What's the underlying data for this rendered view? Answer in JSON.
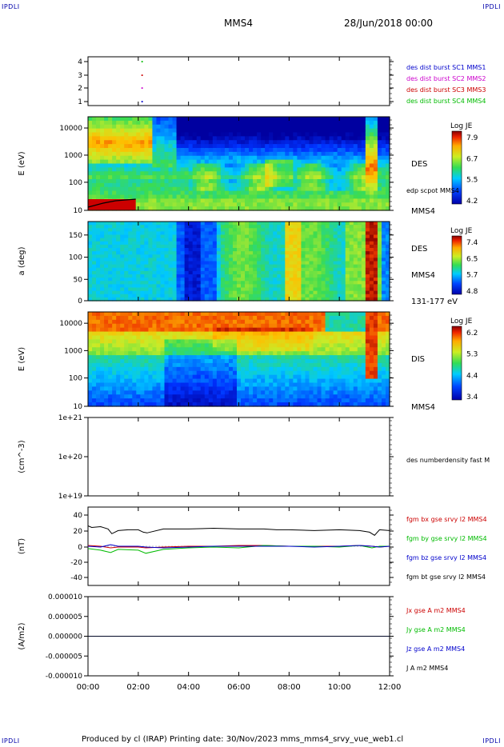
{
  "header": {
    "corner_tl": "IPDLI",
    "corner_tr": "IPDLI",
    "corner_bl": "IPDLI",
    "corner_br": "IPDLI",
    "mission": "MMS4",
    "date": "28/Jun/2018 00:00"
  },
  "footer": {
    "text": "Produced by cl (IRAP)   Printing date: 30/Nov/2023   mms_mms4_srvy_vue_web1.cl"
  },
  "colors": {
    "mms1": "#0000cc",
    "mms2": "#cc00cc",
    "mms3": "#cc0000",
    "mms4": "#00bb00",
    "bx": "#cc0000",
    "by": "#00bb00",
    "bz": "#0000cc",
    "bt": "#000000"
  },
  "chart_data": [
    {
      "id": "burst",
      "type": "scatter",
      "ylabel": "",
      "yticks": [
        "4",
        "3",
        "2",
        "1"
      ],
      "ylim": [
        0.5,
        4.5
      ],
      "series": [
        {
          "name": "des dist burst SC1 MMS1",
          "x": [
            2.15
          ],
          "y": [
            1
          ]
        },
        {
          "name": "des dist burst SC2 MMS2",
          "x": [
            2.15
          ],
          "y": [
            2
          ]
        },
        {
          "name": "des dist burst SC3 MMS3",
          "x": [
            2.15
          ],
          "y": [
            3
          ]
        },
        {
          "name": "des dist burst SC4 MMS4",
          "x": [
            2.15
          ],
          "y": [
            4
          ]
        }
      ]
    },
    {
      "id": "des_energy",
      "type": "heatmap",
      "ylabel": "E (eV)",
      "yticks": [
        "10000",
        "1000",
        "100",
        "10"
      ],
      "scale": "log",
      "ylim": [
        10,
        30000
      ],
      "labels": [
        "DES",
        "edp scpot MMS4",
        "MMS4"
      ],
      "colorbar": {
        "title": "Log JE",
        "ticks": [
          "7.9",
          "6.7",
          "5.5",
          "4.2"
        ]
      }
    },
    {
      "id": "des_pitch",
      "type": "heatmap",
      "ylabel": "a (deg)",
      "yticks": [
        "150",
        "100",
        "50",
        "0"
      ],
      "ylim": [
        0,
        180
      ],
      "labels": [
        "DES",
        "MMS4",
        "131-177 eV"
      ],
      "colorbar": {
        "title": "Log JE",
        "ticks": [
          "7.4",
          "6.5",
          "5.7",
          "4.8"
        ]
      }
    },
    {
      "id": "dis_energy",
      "type": "heatmap",
      "ylabel": "E (eV)",
      "yticks": [
        "10000",
        "1000",
        "100",
        "10"
      ],
      "scale": "log",
      "ylim": [
        10,
        30000
      ],
      "labels": [
        "DIS",
        "MMS4"
      ],
      "colorbar": {
        "title": "Log JE",
        "ticks": [
          "6.2",
          "5.3",
          "4.4",
          "3.4"
        ]
      }
    },
    {
      "id": "density",
      "type": "line",
      "ylabel": "(cm^-3)",
      "yticks": [
        "1e+21",
        "1e+20",
        "1e+19"
      ],
      "scale": "log",
      "labels": [
        "des numberdensity fast M"
      ],
      "series": []
    },
    {
      "id": "bfield",
      "type": "line",
      "ylabel": "(nT)",
      "yticks": [
        "40",
        "20",
        "0",
        "-20",
        "-40"
      ],
      "ylim": [
        -50,
        50
      ],
      "series": [
        {
          "name": "fgm bx gse srvy l2 MMS4",
          "x": [
            0,
            0.5,
            0.9,
            1.2,
            2,
            2.3,
            3,
            4,
            5,
            6,
            7,
            8,
            9,
            10,
            10.8,
            11.3,
            11.6,
            12
          ],
          "y": [
            1,
            0,
            -2,
            -1,
            -1,
            -2,
            -1,
            0,
            0,
            1,
            1,
            0,
            0,
            0,
            1,
            0,
            -1,
            0
          ]
        },
        {
          "name": "fgm by gse srvy l2 MMS4",
          "x": [
            0,
            0.5,
            0.9,
            1.2,
            2,
            2.3,
            3,
            4,
            5,
            6,
            7,
            8,
            9,
            10,
            10.8,
            11.3,
            11.6,
            12
          ],
          "y": [
            -3,
            -5,
            -8,
            -4,
            -5,
            -9,
            -4,
            -2,
            -1,
            -2,
            1,
            0,
            0,
            -1,
            1,
            -2,
            0,
            0
          ]
        },
        {
          "name": "fgm bz gse srvy l2 MMS4",
          "x": [
            0,
            0.5,
            0.9,
            1.2,
            2,
            2.3,
            3,
            4,
            5,
            6,
            7,
            8,
            9,
            10,
            10.8,
            11.3,
            11.6,
            12
          ],
          "y": [
            0,
            -1,
            2,
            0,
            0,
            -1,
            -2,
            -1,
            0,
            0,
            0,
            0,
            -1,
            0,
            1,
            0,
            -1,
            0
          ]
        },
        {
          "name": "fgm bt gse srvy l2 MMS4",
          "x": [
            0,
            0.15,
            0.5,
            0.8,
            0.95,
            1.2,
            1.6,
            2.0,
            2.2,
            2.35,
            3.0,
            4.0,
            5.0,
            6.0,
            7.0,
            7.5,
            8.0,
            9.0,
            10.0,
            10.8,
            11.2,
            11.4,
            11.6,
            12.0
          ],
          "y": [
            26,
            24,
            25,
            22,
            16,
            20,
            21,
            21,
            18,
            17,
            22,
            22,
            23,
            22,
            22,
            21,
            21,
            20,
            21,
            20,
            18,
            14,
            21,
            20
          ]
        }
      ]
    },
    {
      "id": "current",
      "type": "line",
      "ylabel": "(A/m2)",
      "yticks": [
        "0.000010",
        "0.000005",
        "0.000000",
        "-0.000005",
        "-0.000010"
      ],
      "ylim": [
        -1e-05,
        1e-05
      ],
      "series": [
        {
          "name": "Jx gse A m2 MMS4",
          "x": [
            0,
            12
          ],
          "y": [
            0,
            0
          ]
        },
        {
          "name": "Jy gse A m2 MMS4",
          "x": [
            0,
            12
          ],
          "y": [
            0,
            0
          ]
        },
        {
          "name": "Jz gse A m2 MMS4",
          "x": [
            0,
            12
          ],
          "y": [
            0,
            0
          ]
        },
        {
          "name": "J A m2 MMS4",
          "x": [
            0,
            12
          ],
          "y": [
            0,
            0
          ]
        }
      ]
    }
  ],
  "xaxis": {
    "ticks": [
      "00:00",
      "02:00",
      "04:00",
      "06:00",
      "08:00",
      "10:00",
      "12:00"
    ],
    "range": [
      0,
      12
    ]
  }
}
